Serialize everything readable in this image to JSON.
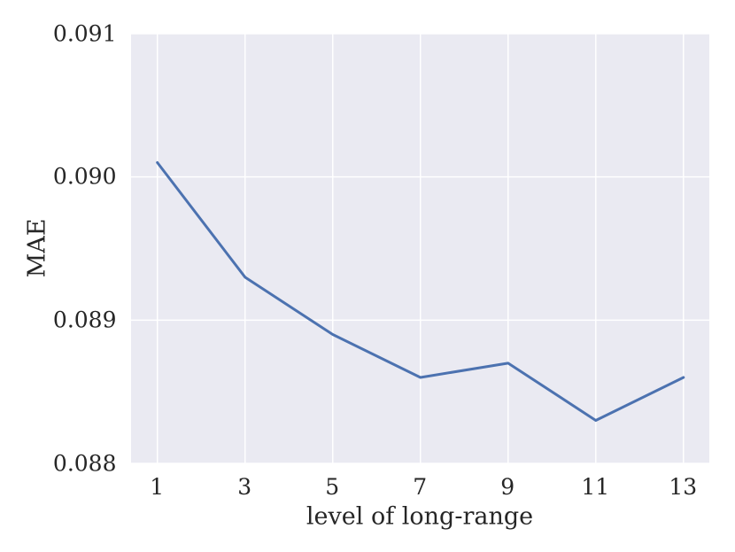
{
  "chart_data": {
    "type": "line",
    "title": "",
    "xlabel": "level of long-range",
    "ylabel": "MAE",
    "x": [
      1,
      3,
      5,
      7,
      9,
      11,
      13
    ],
    "series": [
      {
        "name": "MAE",
        "values": [
          0.0901,
          0.0893,
          0.0889,
          0.0886,
          0.0887,
          0.0883,
          0.0886
        ]
      }
    ],
    "xlim": [
      0.4,
      13.6
    ],
    "ylim": [
      0.088,
      0.091
    ],
    "xticks": {
      "values": [
        1,
        3,
        5,
        7,
        9,
        11,
        13
      ],
      "labels": [
        "1",
        "3",
        "5",
        "7",
        "9",
        "11",
        "13"
      ]
    },
    "yticks": {
      "values": [
        0.088,
        0.089,
        0.09,
        0.091
      ],
      "labels": [
        "0.088",
        "0.089",
        "0.090",
        "0.091"
      ]
    },
    "grid": true,
    "legend": "none",
    "colors": {
      "line": "#4C72B0",
      "plot_bg": "#EAEAF2",
      "grid": "#FFFFFF",
      "text": "#262626",
      "figure_bg": "#FFFFFF"
    }
  }
}
